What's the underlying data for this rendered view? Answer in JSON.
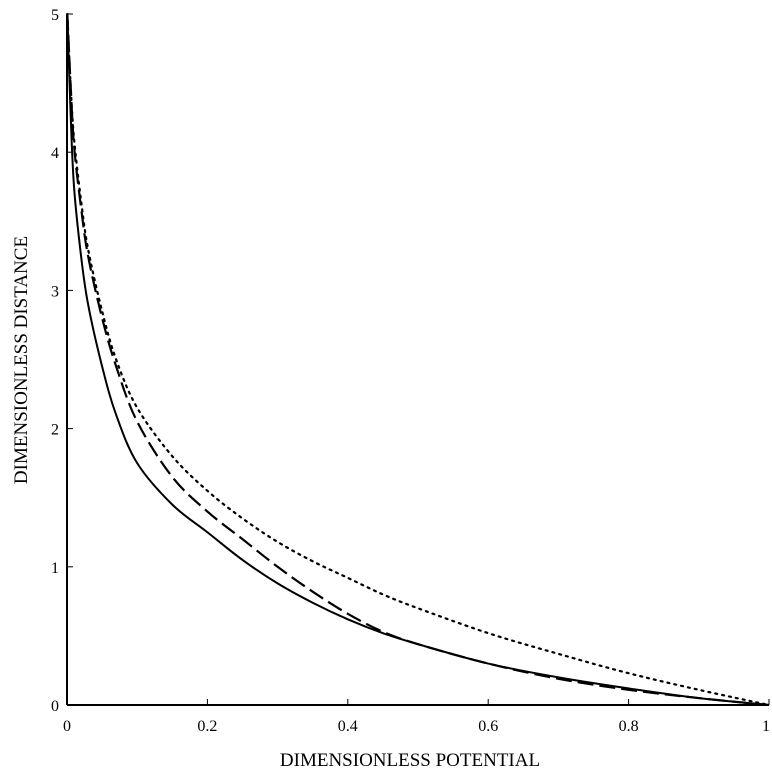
{
  "chart_data": {
    "type": "line",
    "title": "",
    "xlabel": "DIMENSIONLESS POTENTIAL",
    "ylabel": "DIMENSIONLESS DISTANCE",
    "xlim": [
      0,
      1
    ],
    "ylim": [
      0,
      5
    ],
    "x_ticks": [
      {
        "value": 0,
        "label": "0"
      },
      {
        "value": 0.2,
        "label": "0.2"
      },
      {
        "value": 0.4,
        "label": "0.4"
      },
      {
        "value": 0.6,
        "label": "0.6"
      },
      {
        "value": 0.8,
        "label": "0.8"
      },
      {
        "value": 1,
        "label": "1"
      }
    ],
    "y_ticks": [
      {
        "value": 0,
        "label": "0"
      },
      {
        "value": 1,
        "label": "1"
      },
      {
        "value": 2,
        "label": "2"
      },
      {
        "value": 3,
        "label": "3"
      },
      {
        "value": 4,
        "label": "4"
      },
      {
        "value": 5,
        "label": "5"
      }
    ],
    "grid": false,
    "legend": "none",
    "series": [
      {
        "style": "solid",
        "color": "#000000",
        "x": [
          0.0005,
          0.005,
          0.01,
          0.02,
          0.03,
          0.05,
          0.07,
          0.1,
          0.15,
          0.2,
          0.25,
          0.3,
          0.35,
          0.4,
          0.45,
          0.5,
          0.6,
          0.7,
          0.8,
          0.9,
          1.0
        ],
        "y": [
          5.0,
          4.3,
          3.75,
          3.25,
          2.9,
          2.45,
          2.1,
          1.75,
          1.45,
          1.25,
          1.05,
          0.88,
          0.74,
          0.62,
          0.52,
          0.44,
          0.3,
          0.2,
          0.12,
          0.05,
          0.0
        ]
      },
      {
        "style": "dashed",
        "color": "#000000",
        "x": [
          0.0005,
          0.005,
          0.01,
          0.02,
          0.03,
          0.05,
          0.07,
          0.1,
          0.15,
          0.2,
          0.25,
          0.3,
          0.35,
          0.4,
          0.45,
          0.5,
          0.6,
          0.7,
          0.8,
          0.9,
          1.0
        ],
        "y": [
          5.0,
          4.5,
          4.05,
          3.6,
          3.25,
          2.8,
          2.45,
          2.05,
          1.65,
          1.4,
          1.2,
          1.0,
          0.82,
          0.66,
          0.53,
          0.44,
          0.3,
          0.19,
          0.11,
          0.05,
          0.0
        ]
      },
      {
        "style": "dotted",
        "color": "#000000",
        "x": [
          0.0005,
          0.005,
          0.01,
          0.02,
          0.03,
          0.05,
          0.07,
          0.1,
          0.15,
          0.2,
          0.25,
          0.3,
          0.35,
          0.4,
          0.45,
          0.5,
          0.6,
          0.7,
          0.8,
          0.9,
          1.0
        ],
        "y": [
          5.0,
          4.5,
          4.1,
          3.65,
          3.3,
          2.85,
          2.5,
          2.15,
          1.8,
          1.55,
          1.35,
          1.18,
          1.04,
          0.92,
          0.8,
          0.7,
          0.52,
          0.37,
          0.23,
          0.11,
          0.0
        ]
      }
    ]
  }
}
